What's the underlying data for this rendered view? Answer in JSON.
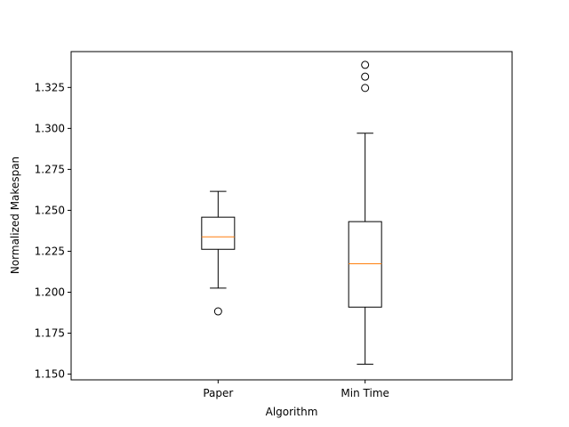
{
  "chart_data": {
    "type": "box",
    "title": "",
    "xlabel": "Algorithm",
    "ylabel": "Normalized Makespan",
    "ylim": [
      1.1465,
      1.3469
    ],
    "yticks": [
      "1.150",
      "1.175",
      "1.200",
      "1.225",
      "1.250",
      "1.275",
      "1.300",
      "1.325"
    ],
    "grid": false,
    "categories": [
      "Paper",
      "Min Time"
    ],
    "boxes": [
      {
        "label": "Paper",
        "whisker_low": 1.2025,
        "q1": 1.2262,
        "median": 1.2338,
        "q3": 1.2458,
        "whisker_high": 1.2616,
        "outliers": [
          1.1883
        ]
      },
      {
        "label": "Min Time",
        "whisker_low": 1.1561,
        "q1": 1.1909,
        "median": 1.2174,
        "q3": 1.2431,
        "whisker_high": 1.2971,
        "outliers": [
          1.3247,
          1.3316,
          1.3388
        ]
      }
    ],
    "colors": {
      "box": "#000000",
      "median": "#ff7f0e",
      "axes": "#000000",
      "background": "#ffffff"
    }
  }
}
